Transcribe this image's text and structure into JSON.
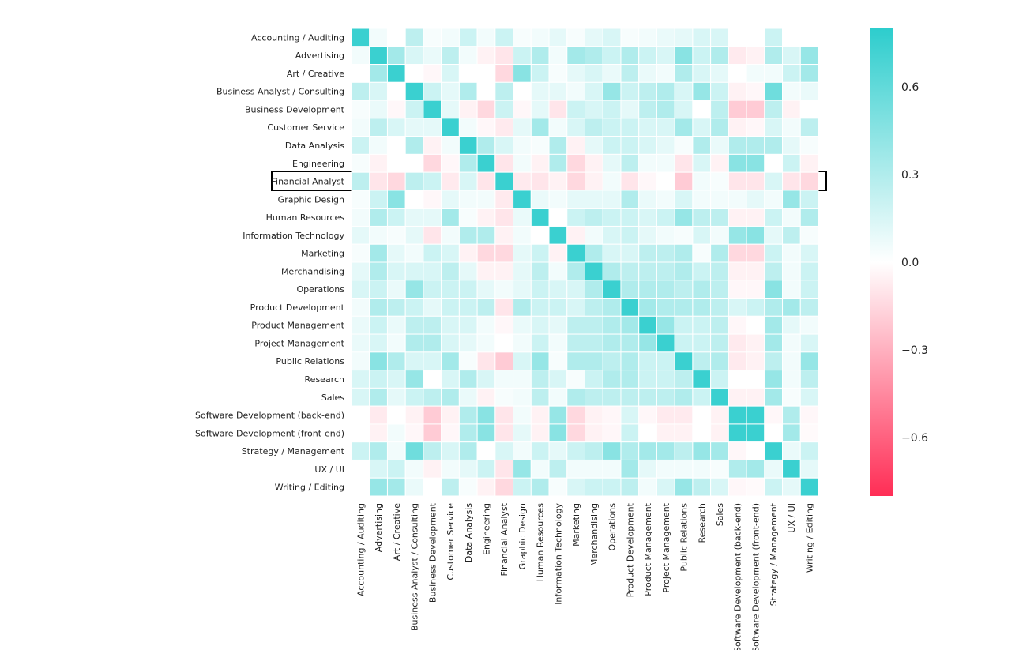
{
  "chart_data": {
    "type": "heatmap",
    "categories": [
      "Accounting / Auditing",
      "Advertising",
      "Art / Creative",
      "Business Analyst / Consulting",
      "Business Development",
      "Customer Service",
      "Data Analysis",
      "Engineering",
      "Financial Analyst",
      "Graphic Design",
      "Human Resources",
      "Information Technology",
      "Marketing",
      "Merchandising",
      "Operations",
      "Product Development",
      "Product Management",
      "Project Management",
      "Public Relations",
      "Research",
      "Sales",
      "Software Development (back-end)",
      "Software Development (front-end)",
      "Strategy / Management",
      "UX / UI",
      "Writing / Editing"
    ],
    "values": [
      [
        0.75,
        0.05,
        0.0,
        0.25,
        0.03,
        0.05,
        0.2,
        0.05,
        0.2,
        0.03,
        0.05,
        0.1,
        0.03,
        0.1,
        0.15,
        0.03,
        0.05,
        0.08,
        0.1,
        0.15,
        0.15,
        0.0,
        0.0,
        0.2,
        0.0,
        0.0
      ],
      [
        0.05,
        0.75,
        0.35,
        0.15,
        0.08,
        0.25,
        0.05,
        -0.05,
        -0.1,
        0.2,
        0.3,
        0.05,
        0.35,
        0.3,
        0.2,
        0.3,
        0.2,
        0.15,
        0.45,
        0.2,
        0.3,
        -0.08,
        -0.05,
        0.3,
        0.15,
        0.4
      ],
      [
        0.0,
        0.35,
        0.75,
        0.0,
        -0.03,
        0.15,
        0.0,
        0.0,
        -0.15,
        0.45,
        0.2,
        0.03,
        0.1,
        0.15,
        0.08,
        0.25,
        0.08,
        0.05,
        0.3,
        0.15,
        0.1,
        0.0,
        0.05,
        0.05,
        0.2,
        0.35
      ],
      [
        0.25,
        0.15,
        0.0,
        0.75,
        0.2,
        0.1,
        0.3,
        0.0,
        0.25,
        0.0,
        0.1,
        0.1,
        0.05,
        0.15,
        0.4,
        0.2,
        0.25,
        0.3,
        0.15,
        0.4,
        0.2,
        -0.05,
        -0.03,
        0.55,
        0.05,
        0.08
      ],
      [
        0.03,
        0.08,
        -0.03,
        0.2,
        0.75,
        0.1,
        -0.05,
        -0.15,
        0.2,
        -0.03,
        0.1,
        -0.1,
        0.2,
        0.15,
        0.2,
        0.1,
        0.25,
        0.3,
        0.15,
        0.0,
        0.25,
        -0.2,
        -0.2,
        0.25,
        -0.05,
        0.0
      ],
      [
        0.05,
        0.25,
        0.15,
        0.1,
        0.1,
        0.75,
        0.05,
        -0.03,
        -0.08,
        0.1,
        0.35,
        0.05,
        0.15,
        0.25,
        0.2,
        0.2,
        0.15,
        0.15,
        0.35,
        0.15,
        0.3,
        -0.05,
        -0.03,
        0.15,
        0.05,
        0.25
      ],
      [
        0.2,
        0.05,
        0.0,
        0.3,
        -0.05,
        0.05,
        0.75,
        0.3,
        0.15,
        0.05,
        0.03,
        0.3,
        -0.05,
        0.1,
        0.2,
        0.2,
        0.15,
        0.1,
        0.03,
        0.3,
        0.08,
        0.3,
        0.3,
        0.3,
        0.1,
        0.03
      ],
      [
        0.03,
        -0.05,
        0.0,
        0.0,
        -0.15,
        -0.03,
        0.3,
        0.75,
        -0.1,
        0.05,
        -0.05,
        0.3,
        -0.15,
        -0.05,
        0.1,
        0.25,
        0.05,
        0.05,
        -0.1,
        0.15,
        -0.05,
        0.45,
        0.45,
        0.0,
        0.2,
        -0.05
      ],
      [
        0.25,
        -0.1,
        -0.15,
        0.25,
        0.2,
        -0.08,
        0.15,
        -0.1,
        0.75,
        -0.08,
        -0.1,
        -0.05,
        -0.15,
        -0.05,
        0.05,
        -0.1,
        -0.03,
        0.0,
        -0.2,
        0.05,
        0.03,
        -0.1,
        -0.1,
        0.15,
        -0.1,
        -0.15
      ],
      [
        0.03,
        0.2,
        0.45,
        0.0,
        -0.03,
        0.1,
        0.05,
        0.05,
        -0.08,
        0.75,
        0.08,
        0.05,
        0.1,
        0.1,
        0.1,
        0.3,
        0.08,
        0.05,
        0.15,
        0.05,
        0.05,
        0.05,
        0.1,
        0.05,
        0.4,
        0.2
      ],
      [
        0.05,
        0.3,
        0.2,
        0.1,
        0.1,
        0.35,
        0.03,
        -0.05,
        -0.1,
        0.08,
        0.75,
        0.0,
        0.2,
        0.25,
        0.2,
        0.2,
        0.15,
        0.2,
        0.4,
        0.25,
        0.25,
        -0.05,
        -0.05,
        0.2,
        0.05,
        0.3
      ],
      [
        0.1,
        0.05,
        0.03,
        0.1,
        -0.1,
        0.05,
        0.3,
        0.3,
        -0.05,
        0.05,
        0.0,
        0.75,
        -0.05,
        0.05,
        0.15,
        0.2,
        0.1,
        0.05,
        0.03,
        0.15,
        0.05,
        0.4,
        0.45,
        0.1,
        0.25,
        0.03
      ],
      [
        0.03,
        0.35,
        0.1,
        0.05,
        0.2,
        0.15,
        -0.05,
        -0.15,
        -0.15,
        0.1,
        0.2,
        -0.05,
        0.75,
        0.3,
        0.15,
        0.15,
        0.25,
        0.25,
        0.3,
        0.03,
        0.3,
        -0.15,
        -0.15,
        0.2,
        0.05,
        0.15
      ],
      [
        0.1,
        0.3,
        0.15,
        0.15,
        0.15,
        0.25,
        0.1,
        -0.05,
        -0.05,
        0.1,
        0.25,
        0.05,
        0.3,
        0.75,
        0.3,
        0.25,
        0.25,
        0.25,
        0.3,
        0.2,
        0.25,
        -0.05,
        -0.05,
        0.25,
        0.05,
        0.2
      ],
      [
        0.15,
        0.2,
        0.08,
        0.4,
        0.2,
        0.2,
        0.2,
        0.1,
        0.05,
        0.1,
        0.2,
        0.15,
        0.15,
        0.3,
        0.75,
        0.3,
        0.3,
        0.3,
        0.25,
        0.3,
        0.25,
        -0.03,
        -0.03,
        0.45,
        0.05,
        0.2
      ],
      [
        0.05,
        0.3,
        0.25,
        0.2,
        0.1,
        0.2,
        0.2,
        0.25,
        -0.1,
        0.3,
        0.2,
        0.2,
        0.15,
        0.25,
        0.3,
        0.75,
        0.35,
        0.3,
        0.3,
        0.3,
        0.25,
        0.15,
        0.2,
        0.3,
        0.35,
        0.25
      ],
      [
        0.08,
        0.2,
        0.08,
        0.25,
        0.25,
        0.15,
        0.15,
        0.05,
        -0.03,
        0.08,
        0.15,
        0.1,
        0.25,
        0.25,
        0.3,
        0.35,
        0.75,
        0.4,
        0.2,
        0.2,
        0.25,
        -0.03,
        0.0,
        0.35,
        0.1,
        0.05
      ],
      [
        0.08,
        0.15,
        0.05,
        0.3,
        0.3,
        0.15,
        0.1,
        0.05,
        0.0,
        0.05,
        0.2,
        0.05,
        0.25,
        0.25,
        0.3,
        0.3,
        0.4,
        0.75,
        0.2,
        0.2,
        0.25,
        -0.08,
        -0.05,
        0.35,
        0.05,
        0.15
      ],
      [
        0.05,
        0.45,
        0.3,
        0.15,
        0.15,
        0.35,
        0.03,
        -0.1,
        -0.2,
        0.15,
        0.4,
        0.03,
        0.3,
        0.3,
        0.25,
        0.3,
        0.2,
        0.2,
        0.75,
        0.25,
        0.3,
        -0.08,
        -0.05,
        0.25,
        0.05,
        0.4
      ],
      [
        0.15,
        0.2,
        0.15,
        0.4,
        0.0,
        0.15,
        0.3,
        0.15,
        0.05,
        0.05,
        0.25,
        0.15,
        0.03,
        0.2,
        0.3,
        0.3,
        0.2,
        0.2,
        0.25,
        0.75,
        0.2,
        0.0,
        0.0,
        0.4,
        0.05,
        0.25
      ],
      [
        0.15,
        0.3,
        0.1,
        0.2,
        0.25,
        0.3,
        0.08,
        -0.05,
        0.03,
        0.05,
        0.25,
        0.05,
        0.3,
        0.25,
        0.25,
        0.25,
        0.25,
        0.25,
        0.3,
        0.2,
        0.75,
        -0.05,
        -0.05,
        0.35,
        0.03,
        0.15
      ],
      [
        0.0,
        -0.08,
        0.0,
        -0.05,
        -0.2,
        -0.05,
        0.3,
        0.45,
        -0.1,
        0.05,
        -0.05,
        0.4,
        -0.15,
        -0.05,
        -0.03,
        0.15,
        -0.03,
        -0.08,
        -0.08,
        0.0,
        -0.05,
        0.75,
        0.75,
        -0.03,
        0.3,
        -0.03
      ],
      [
        0.0,
        -0.05,
        0.05,
        -0.03,
        -0.2,
        -0.03,
        0.3,
        0.45,
        -0.1,
        0.1,
        -0.05,
        0.45,
        -0.15,
        -0.05,
        -0.03,
        0.2,
        0.0,
        -0.05,
        -0.05,
        0.0,
        -0.05,
        0.75,
        0.75,
        0.0,
        0.35,
        -0.02
      ],
      [
        0.2,
        0.3,
        0.05,
        0.55,
        0.25,
        0.15,
        0.3,
        0.0,
        0.15,
        0.05,
        0.2,
        0.1,
        0.2,
        0.25,
        0.45,
        0.3,
        0.35,
        0.35,
        0.25,
        0.4,
        0.35,
        -0.03,
        0.0,
        0.75,
        0.08,
        0.2
      ],
      [
        0.0,
        0.15,
        0.2,
        0.05,
        -0.05,
        0.05,
        0.1,
        0.2,
        -0.1,
        0.4,
        0.05,
        0.25,
        0.05,
        0.05,
        0.05,
        0.35,
        0.1,
        0.05,
        0.05,
        0.05,
        0.03,
        0.3,
        0.35,
        0.08,
        0.75,
        0.1
      ],
      [
        0.0,
        0.4,
        0.35,
        0.08,
        0.0,
        0.25,
        0.03,
        -0.05,
        -0.15,
        0.2,
        0.3,
        0.03,
        0.15,
        0.2,
        0.2,
        0.25,
        0.05,
        0.15,
        0.4,
        0.25,
        0.15,
        -0.03,
        -0.02,
        0.2,
        0.1,
        0.75
      ]
    ],
    "colormap": [
      "#ff2d55",
      "#ffffff",
      "#2dcdcd"
    ],
    "clim": [
      -0.8,
      0.8
    ],
    "cticks": [
      {
        "value": -0.6,
        "label": "−0.6"
      },
      {
        "value": -0.3,
        "label": "−0.3"
      },
      {
        "value": 0,
        "label": "0.0"
      },
      0.3,
      0.6
    ]
  }
}
